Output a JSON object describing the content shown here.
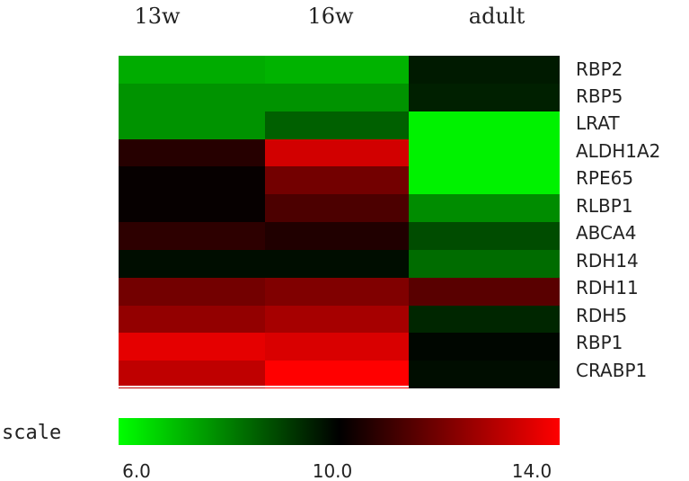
{
  "chart_data": {
    "type": "heatmap",
    "columns": [
      "13w",
      "16w",
      "adult"
    ],
    "rows": [
      "RBP2",
      "RBP5",
      "LRAT",
      "ALDH1A2",
      "RPE65",
      "RLBP1",
      "ABCA4",
      "RDH14",
      "RDH11",
      "RDH5",
      "RBP1",
      "CRABP1"
    ],
    "values": [
      [
        7.3,
        7.2,
        9.6
      ],
      [
        7.7,
        7.7,
        9.5
      ],
      [
        7.7,
        8.5,
        6.2
      ],
      [
        10.6,
        13.3,
        6.2
      ],
      [
        10.1,
        11.8,
        6.2
      ],
      [
        10.1,
        11.2,
        7.8
      ],
      [
        10.7,
        10.5,
        8.8
      ],
      [
        9.8,
        9.8,
        8.3
      ],
      [
        11.8,
        12.0,
        11.4
      ],
      [
        12.3,
        12.6,
        9.4
      ],
      [
        13.6,
        13.4,
        9.9
      ],
      [
        13.0,
        14.0,
        9.8
      ]
    ],
    "scale": {
      "label": "scale",
      "min": 6.0,
      "mid": 10.0,
      "max": 14.0,
      "colors": [
        "#00ff00",
        "#000000",
        "#ff0000"
      ],
      "tick_labels": [
        "6.0",
        "10.0",
        "14.0"
      ]
    }
  }
}
